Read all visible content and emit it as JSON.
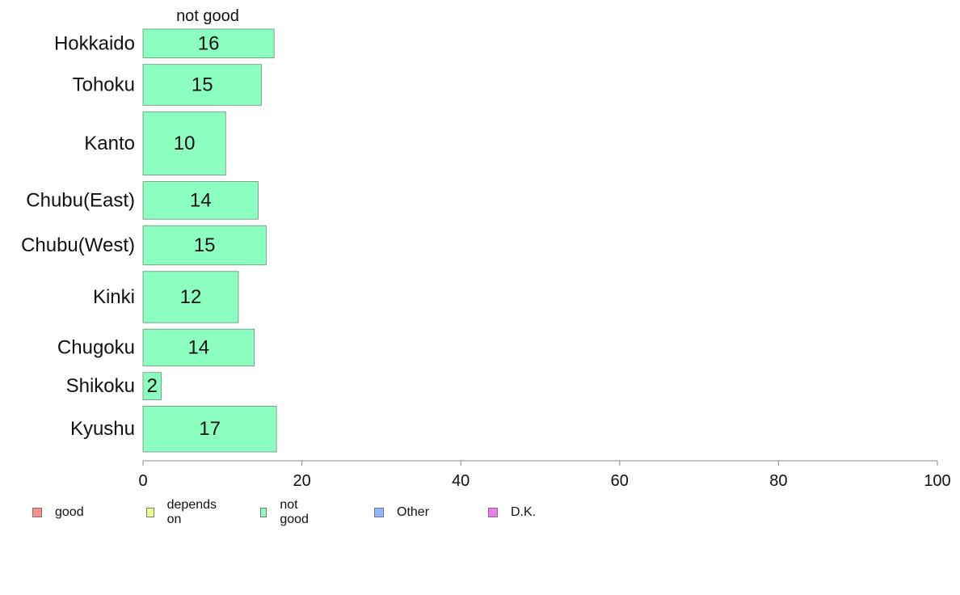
{
  "chart_data": {
    "type": "bar",
    "orientation": "horizontal",
    "column_label": "not good",
    "categories": [
      "Hokkaido",
      "Tohoku",
      "Kanto",
      "Chubu(East)",
      "Chubu(West)",
      "Kinki",
      "Chugoku",
      "Shikoku",
      "Kyushu"
    ],
    "values": [
      16.5,
      14.9,
      10.4,
      14.5,
      15.5,
      12,
      14,
      2.3,
      16.8
    ],
    "value_labels": [
      "16",
      "15",
      "10",
      "14",
      "15",
      "12",
      "14",
      "2",
      "17"
    ],
    "relative_row_heights": [
      36,
      51,
      79,
      47,
      49,
      64,
      46,
      34,
      57
    ],
    "xlim": [
      0,
      100
    ],
    "xticks": [
      0,
      20,
      40,
      60,
      80,
      100
    ],
    "grid": false,
    "series_color": "#8cffc0",
    "legend_position": "bottom-left",
    "legend": [
      {
        "label": "good",
        "color": "#ff8c8c"
      },
      {
        "label": "depends on",
        "color": "#eaff8c"
      },
      {
        "label": "not good",
        "color": "#8cffc0"
      },
      {
        "label": "Other",
        "color": "#8cb8ff"
      },
      {
        "label": "D.K.",
        "color": "#ee7af0"
      }
    ]
  }
}
